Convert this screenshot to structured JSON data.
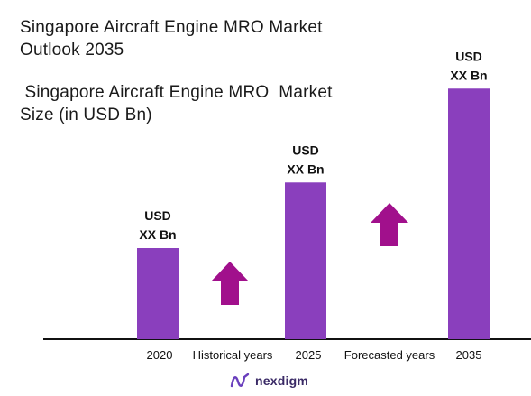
{
  "title_lines": [
    "Singapore Aircraft Engine MRO Market",
    "Outlook 2035"
  ],
  "subtitle_lines": [
    " Singapore Aircraft Engine MRO  Market",
    "Size (in USD Bn)"
  ],
  "colors": {
    "bar": "#8a3fbd",
    "arrow": "#a1108c",
    "axis": "#111111",
    "logo": "#3a2a66"
  },
  "chart_data": {
    "type": "bar",
    "categories": [
      "2020",
      "2025",
      "2035"
    ],
    "relative_heights": [
      1,
      1.72,
      2.75
    ],
    "value_labels": [
      [
        "USD",
        "XX Bn"
      ],
      [
        "USD",
        "XX Bn"
      ],
      [
        "USD",
        "XX Bn"
      ]
    ],
    "period_labels": [
      "Historical years",
      "Forecasted years"
    ],
    "arrows": [
      "up-arrow",
      "up-arrow"
    ]
  },
  "footer": {
    "logo_text": "nexdigm",
    "logo_icon": "nexdigm-logo-icon"
  }
}
